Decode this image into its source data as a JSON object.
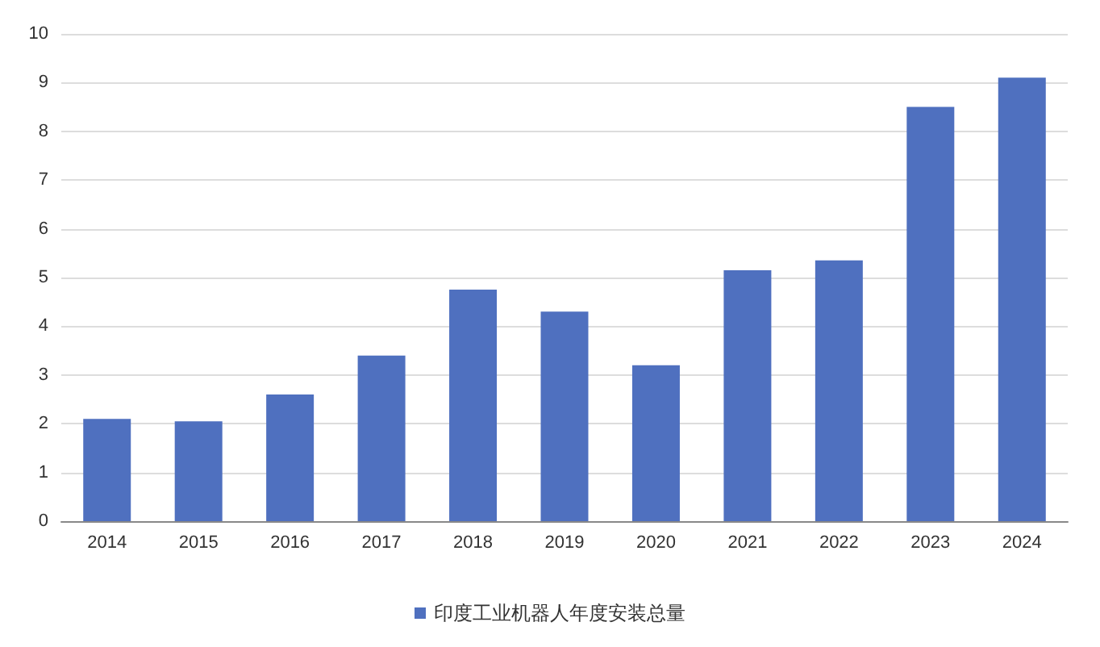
{
  "chart_data": {
    "type": "bar",
    "categories": [
      "2014",
      "2015",
      "2016",
      "2017",
      "2018",
      "2019",
      "2020",
      "2021",
      "2022",
      "2023",
      "2024"
    ],
    "series": [
      {
        "name": "印度工业机器人年度安装总量",
        "color": "#4f70bf",
        "values": [
          2.1,
          2.05,
          2.6,
          3.4,
          4.75,
          4.3,
          3.2,
          5.15,
          5.35,
          8.5,
          9.1
        ]
      }
    ],
    "ylim": [
      0,
      10
    ],
    "yticks": [
      0,
      1,
      2,
      3,
      4,
      5,
      6,
      7,
      8,
      9,
      10
    ],
    "grid": "y",
    "legend": "bottom"
  }
}
